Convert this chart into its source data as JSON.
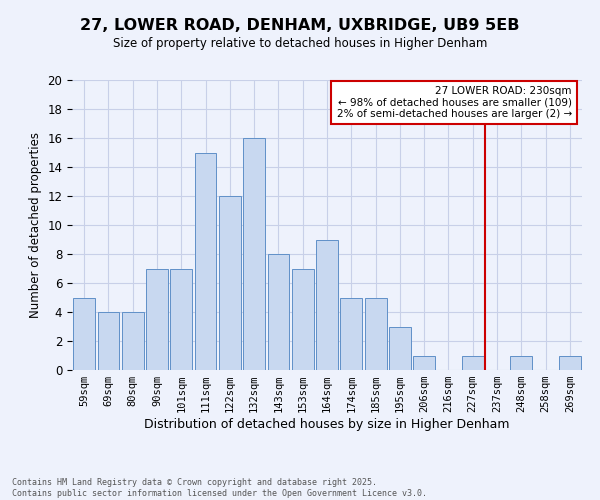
{
  "title": "27, LOWER ROAD, DENHAM, UXBRIDGE, UB9 5EB",
  "subtitle": "Size of property relative to detached houses in Higher Denham",
  "xlabel": "Distribution of detached houses by size in Higher Denham",
  "ylabel": "Number of detached properties",
  "bin_labels": [
    "59sqm",
    "69sqm",
    "80sqm",
    "90sqm",
    "101sqm",
    "111sqm",
    "122sqm",
    "132sqm",
    "143sqm",
    "153sqm",
    "164sqm",
    "174sqm",
    "185sqm",
    "195sqm",
    "206sqm",
    "216sqm",
    "227sqm",
    "237sqm",
    "248sqm",
    "258sqm",
    "269sqm"
  ],
  "bar_values": [
    5,
    4,
    4,
    7,
    7,
    15,
    12,
    16,
    8,
    7,
    9,
    5,
    5,
    3,
    1,
    0,
    1,
    0,
    1,
    0,
    1
  ],
  "bar_color": "#c8d8f0",
  "bar_edgecolor": "#6090c8",
  "vline_x": 16.5,
  "vline_color": "#cc0000",
  "annotation_title": "27 LOWER ROAD: 230sqm",
  "annotation_line1": "← 98% of detached houses are smaller (109)",
  "annotation_line2": "2% of semi-detached houses are larger (2) →",
  "annotation_box_facecolor": "#ffffff",
  "annotation_box_edgecolor": "#cc0000",
  "ylim": [
    0,
    20
  ],
  "yticks": [
    0,
    2,
    4,
    6,
    8,
    10,
    12,
    14,
    16,
    18,
    20
  ],
  "footer_line1": "Contains HM Land Registry data © Crown copyright and database right 2025.",
  "footer_line2": "Contains public sector information licensed under the Open Government Licence v3.0.",
  "background_color": "#eef2fc",
  "grid_color": "#c8d0e8"
}
